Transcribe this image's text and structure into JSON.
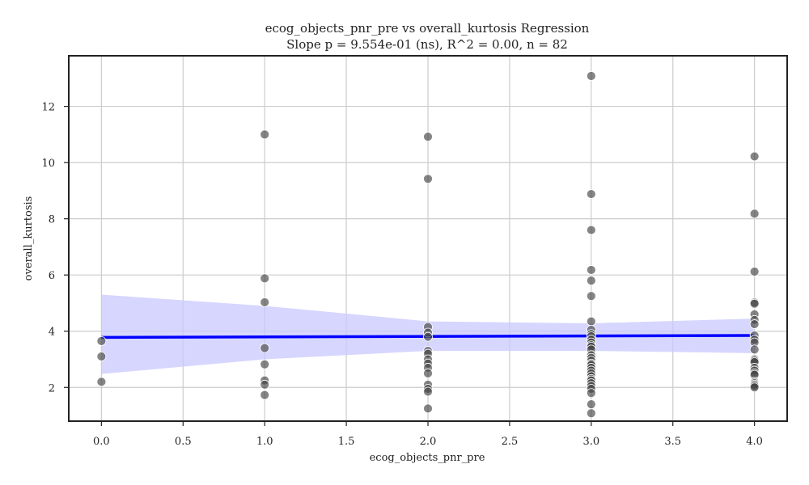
{
  "chart_data": {
    "type": "scatter",
    "title": "ecog_objects_pnr_pre vs overall_kurtosis Regression",
    "subtitle": "Slope p = 9.554e-01 (ns), R^2 = 0.00, n = 82",
    "xlabel": "ecog_objects_pnr_pre",
    "ylabel": "overall_kurtosis",
    "xlim": [
      -0.2,
      4.2
    ],
    "ylim": [
      0.8,
      13.8
    ],
    "xticks": [
      0.0,
      0.5,
      1.0,
      1.5,
      2.0,
      2.5,
      3.0,
      3.5,
      4.0
    ],
    "xtick_labels": [
      "0.0",
      "0.5",
      "1.0",
      "1.5",
      "2.0",
      "2.5",
      "3.0",
      "3.5",
      "4.0"
    ],
    "yticks": [
      2,
      4,
      6,
      8,
      10,
      12
    ],
    "ytick_labels": [
      "2",
      "4",
      "6",
      "8",
      "10",
      "12"
    ],
    "grid": true,
    "points": [
      {
        "x": 0,
        "y": 3.65
      },
      {
        "x": 0,
        "y": 3.1
      },
      {
        "x": 0,
        "y": 2.2
      },
      {
        "x": 1,
        "y": 11.0
      },
      {
        "x": 1,
        "y": 5.88
      },
      {
        "x": 1,
        "y": 5.03
      },
      {
        "x": 1,
        "y": 3.4
      },
      {
        "x": 1,
        "y": 2.82
      },
      {
        "x": 1,
        "y": 2.25
      },
      {
        "x": 1,
        "y": 2.1
      },
      {
        "x": 1,
        "y": 1.73
      },
      {
        "x": 2,
        "y": 10.92
      },
      {
        "x": 2,
        "y": 9.42
      },
      {
        "x": 2,
        "y": 4.15
      },
      {
        "x": 2,
        "y": 3.95
      },
      {
        "x": 2,
        "y": 3.8
      },
      {
        "x": 2,
        "y": 3.3
      },
      {
        "x": 2,
        "y": 3.2
      },
      {
        "x": 2,
        "y": 3.0
      },
      {
        "x": 2,
        "y": 2.85
      },
      {
        "x": 2,
        "y": 2.7
      },
      {
        "x": 2,
        "y": 2.5
      },
      {
        "x": 2,
        "y": 2.1
      },
      {
        "x": 2,
        "y": 1.95
      },
      {
        "x": 2,
        "y": 1.85
      },
      {
        "x": 2,
        "y": 1.25
      },
      {
        "x": 3,
        "y": 13.08
      },
      {
        "x": 3,
        "y": 8.88
      },
      {
        "x": 3,
        "y": 7.6
      },
      {
        "x": 3,
        "y": 6.18
      },
      {
        "x": 3,
        "y": 5.8
      },
      {
        "x": 3,
        "y": 5.25
      },
      {
        "x": 3,
        "y": 4.35
      },
      {
        "x": 3,
        "y": 4.05
      },
      {
        "x": 3,
        "y": 3.9
      },
      {
        "x": 3,
        "y": 3.82
      },
      {
        "x": 3,
        "y": 3.7
      },
      {
        "x": 3,
        "y": 3.6
      },
      {
        "x": 3,
        "y": 3.5
      },
      {
        "x": 3,
        "y": 3.45
      },
      {
        "x": 3,
        "y": 3.35
      },
      {
        "x": 3,
        "y": 3.15
      },
      {
        "x": 3,
        "y": 3.05
      },
      {
        "x": 3,
        "y": 2.95
      },
      {
        "x": 3,
        "y": 2.85
      },
      {
        "x": 3,
        "y": 2.8
      },
      {
        "x": 3,
        "y": 2.7
      },
      {
        "x": 3,
        "y": 2.6
      },
      {
        "x": 3,
        "y": 2.5
      },
      {
        "x": 3,
        "y": 2.4
      },
      {
        "x": 3,
        "y": 2.3
      },
      {
        "x": 3,
        "y": 2.25
      },
      {
        "x": 3,
        "y": 2.15
      },
      {
        "x": 3,
        "y": 2.05
      },
      {
        "x": 3,
        "y": 1.95
      },
      {
        "x": 3,
        "y": 1.8
      },
      {
        "x": 3,
        "y": 1.4
      },
      {
        "x": 3,
        "y": 1.08
      },
      {
        "x": 4,
        "y": 10.22
      },
      {
        "x": 4,
        "y": 8.18
      },
      {
        "x": 4,
        "y": 6.12
      },
      {
        "x": 4,
        "y": 5.02
      },
      {
        "x": 4,
        "y": 4.98
      },
      {
        "x": 4,
        "y": 4.6
      },
      {
        "x": 4,
        "y": 4.4
      },
      {
        "x": 4,
        "y": 4.25
      },
      {
        "x": 4,
        "y": 3.85
      },
      {
        "x": 4,
        "y": 3.7
      },
      {
        "x": 4,
        "y": 3.6
      },
      {
        "x": 4,
        "y": 3.35
      },
      {
        "x": 4,
        "y": 3.0
      },
      {
        "x": 4,
        "y": 2.95
      },
      {
        "x": 4,
        "y": 2.9
      },
      {
        "x": 4,
        "y": 2.7
      },
      {
        "x": 4,
        "y": 2.6
      },
      {
        "x": 4,
        "y": 2.5
      },
      {
        "x": 4,
        "y": 2.45
      },
      {
        "x": 4,
        "y": 2.2
      },
      {
        "x": 4,
        "y": 2.15
      },
      {
        "x": 4,
        "y": 2.1
      },
      {
        "x": 4,
        "y": 2.05
      },
      {
        "x": 4,
        "y": 2.0
      }
    ],
    "regression_line": {
      "x": [
        0,
        4
      ],
      "y": [
        3.78,
        3.85
      ]
    },
    "confidence_band": {
      "x": [
        0,
        1,
        2,
        3,
        4
      ],
      "lower": [
        2.48,
        3.0,
        3.3,
        3.3,
        3.22
      ],
      "upper": [
        5.3,
        4.9,
        4.35,
        4.28,
        4.45
      ]
    },
    "colors": {
      "points": "#444444",
      "regression_line": "#0000ff",
      "confidence_band": "#c8c8ff",
      "grid": "#cccccc",
      "axes": "#222222"
    }
  }
}
